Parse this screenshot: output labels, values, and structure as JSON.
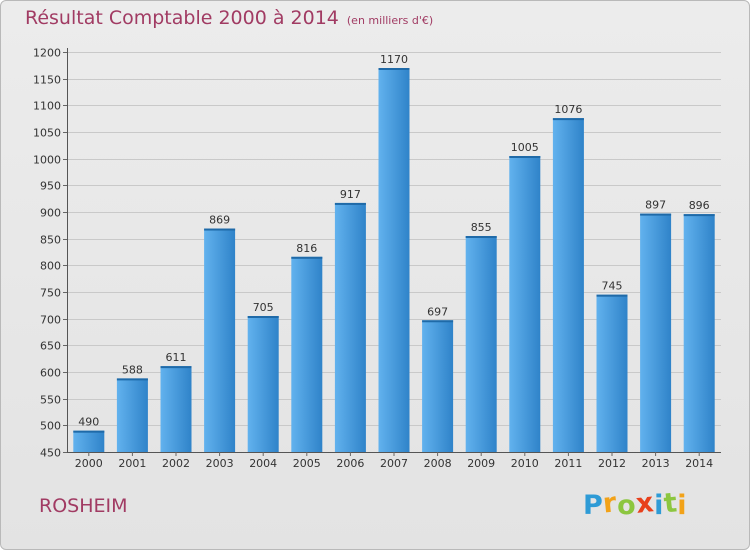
{
  "header": {
    "title": "Résultat Comptable 2000 à 2014",
    "unit": "(en milliers d'€)"
  },
  "footer": {
    "commune": "ROSHEIM",
    "logo_letters": [
      {
        "ch": "P",
        "color": "#2e9bd6"
      },
      {
        "ch": "r",
        "color": "#f2a218"
      },
      {
        "ch": "o",
        "color": "#8cc63f"
      },
      {
        "ch": "x",
        "color": "#e8401c"
      },
      {
        "ch": "i",
        "color": "#2e9bd6"
      },
      {
        "ch": "t",
        "color": "#8cc63f"
      },
      {
        "ch": "i",
        "color": "#f2a218"
      }
    ]
  },
  "chart_data": {
    "type": "bar",
    "title": "Résultat Comptable 2000 à 2014",
    "subtitle": "(en milliers d'€)",
    "xlabel": "",
    "ylabel": "",
    "categories": [
      "2000",
      "2001",
      "2002",
      "2003",
      "2004",
      "2005",
      "2006",
      "2007",
      "2008",
      "2009",
      "2010",
      "2011",
      "2012",
      "2013",
      "2014"
    ],
    "values": [
      490,
      588,
      611,
      869,
      705,
      816,
      917,
      1170,
      697,
      855,
      1005,
      1076,
      745,
      897,
      896
    ],
    "ylim": [
      450,
      1200
    ],
    "yticks": [
      450,
      500,
      550,
      600,
      650,
      700,
      750,
      800,
      850,
      900,
      950,
      1000,
      1050,
      1100,
      1150,
      1200
    ],
    "grid": true,
    "bar_color": "#3a8fd3",
    "bar_color_light": "#62b2ee",
    "title_color": "#a13b63"
  }
}
